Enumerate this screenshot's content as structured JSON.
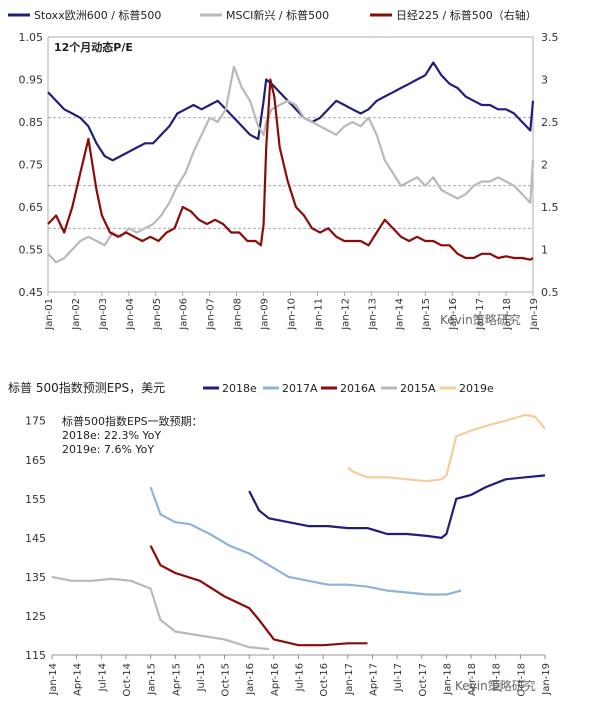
{
  "colors": {
    "navy": "#1f1f7a",
    "grey": "#b9b9b9",
    "darkred": "#8b0a0a",
    "lightblue": "#8db3d9",
    "tan": "#f2cf9a",
    "dashed": "#8c8c8c",
    "axis": "#555555"
  },
  "watermark_1": "Kevin策略研究",
  "watermark_2": "Kevin策略研究",
  "chart_data": [
    {
      "type": "line",
      "title": "12个月动态P/E",
      "legend_position": "top",
      "ylim": [
        0.45,
        1.05
      ],
      "y2lim": [
        0.5,
        3.5
      ],
      "y_ticks": [
        "1.05",
        "0.95",
        "0.85",
        "0.75",
        "0.65",
        "0.55",
        "0.45"
      ],
      "y2_ticks": [
        "3.5",
        "3",
        "2.5",
        "2",
        "1.5",
        "1",
        "0.5"
      ],
      "x_ticks": [
        "Jan-01",
        "Jan-02",
        "Jan-03",
        "Jan-04",
        "Jan-05",
        "Jan-06",
        "Jan-07",
        "Jan-08",
        "Jan-09",
        "Jan-10",
        "Jan-11",
        "Jan-12",
        "Jan-13",
        "Jan-14",
        "Jan-15",
        "Jan-16",
        "Jan-17",
        "Jan-18",
        "Jan-19"
      ],
      "xlim": [
        2001,
        2019
      ],
      "reference_lines": [
        {
          "axis": "left",
          "value": 0.86
        },
        {
          "axis": "left",
          "value": 0.7
        },
        {
          "axis": "left",
          "value": 0.6
        }
      ],
      "series": [
        {
          "name": "Stoxx欧洲600 / 标普500",
          "axis": "left",
          "color_key": "navy",
          "x": [
            2001.0,
            2001.3,
            2001.6,
            2001.9,
            2002.2,
            2002.5,
            2002.8,
            2003.1,
            2003.4,
            2003.7,
            2004.0,
            2004.3,
            2004.6,
            2004.9,
            2005.2,
            2005.5,
            2005.8,
            2006.1,
            2006.4,
            2006.7,
            2007.0,
            2007.3,
            2007.6,
            2007.9,
            2008.2,
            2008.5,
            2008.8,
            2009.0,
            2009.1,
            2009.3,
            2009.6,
            2009.9,
            2010.2,
            2010.5,
            2010.8,
            2011.1,
            2011.4,
            2011.7,
            2012.0,
            2012.3,
            2012.6,
            2012.9,
            2013.2,
            2013.5,
            2013.8,
            2014.1,
            2014.4,
            2014.7,
            2015.0,
            2015.3,
            2015.6,
            2015.9,
            2016.2,
            2016.5,
            2016.8,
            2017.1,
            2017.4,
            2017.7,
            2018.0,
            2018.3,
            2018.6,
            2018.9,
            2019.0
          ],
          "y": [
            0.92,
            0.9,
            0.88,
            0.87,
            0.86,
            0.84,
            0.8,
            0.77,
            0.76,
            0.77,
            0.78,
            0.79,
            0.8,
            0.8,
            0.82,
            0.84,
            0.87,
            0.88,
            0.89,
            0.88,
            0.89,
            0.9,
            0.88,
            0.86,
            0.84,
            0.82,
            0.81,
            0.9,
            0.95,
            0.94,
            0.92,
            0.9,
            0.88,
            0.86,
            0.85,
            0.86,
            0.88,
            0.9,
            0.89,
            0.88,
            0.87,
            0.88,
            0.9,
            0.91,
            0.92,
            0.93,
            0.94,
            0.95,
            0.96,
            0.99,
            0.96,
            0.94,
            0.93,
            0.91,
            0.9,
            0.89,
            0.89,
            0.88,
            0.88,
            0.87,
            0.85,
            0.83,
            0.9
          ]
        },
        {
          "name": "MSCI新兴 / 标普500",
          "axis": "left",
          "color_key": "grey",
          "x": [
            2001.0,
            2001.3,
            2001.6,
            2001.9,
            2002.2,
            2002.5,
            2002.8,
            2003.1,
            2003.4,
            2003.7,
            2004.0,
            2004.3,
            2004.6,
            2004.9,
            2005.2,
            2005.5,
            2005.8,
            2006.1,
            2006.4,
            2006.7,
            2007.0,
            2007.3,
            2007.6,
            2007.9,
            2008.2,
            2008.5,
            2008.8,
            2009.0,
            2009.1,
            2009.3,
            2009.6,
            2009.9,
            2010.2,
            2010.5,
            2010.8,
            2011.1,
            2011.4,
            2011.7,
            2012.0,
            2012.3,
            2012.6,
            2012.9,
            2013.2,
            2013.5,
            2013.8,
            2014.1,
            2014.4,
            2014.7,
            2015.0,
            2015.3,
            2015.6,
            2015.9,
            2016.2,
            2016.5,
            2016.8,
            2017.1,
            2017.4,
            2017.7,
            2018.0,
            2018.3,
            2018.6,
            2018.9,
            2019.0
          ],
          "y": [
            0.54,
            0.52,
            0.53,
            0.55,
            0.57,
            0.58,
            0.57,
            0.56,
            0.59,
            0.58,
            0.6,
            0.59,
            0.6,
            0.61,
            0.63,
            0.66,
            0.7,
            0.73,
            0.78,
            0.82,
            0.86,
            0.85,
            0.88,
            0.98,
            0.93,
            0.9,
            0.84,
            0.82,
            0.85,
            0.88,
            0.89,
            0.9,
            0.89,
            0.86,
            0.85,
            0.84,
            0.83,
            0.82,
            0.84,
            0.85,
            0.84,
            0.86,
            0.82,
            0.76,
            0.73,
            0.7,
            0.71,
            0.72,
            0.7,
            0.72,
            0.69,
            0.68,
            0.67,
            0.68,
            0.7,
            0.71,
            0.71,
            0.72,
            0.71,
            0.7,
            0.68,
            0.66,
            0.76
          ]
        },
        {
          "name": "日经225 / 标普500（右轴）",
          "axis": "right",
          "color_key": "darkred",
          "x": [
            2001.0,
            2001.3,
            2001.6,
            2001.9,
            2002.2,
            2002.5,
            2002.8,
            2003.0,
            2003.3,
            2003.6,
            2003.9,
            2004.2,
            2004.5,
            2004.8,
            2005.1,
            2005.4,
            2005.7,
            2006.0,
            2006.3,
            2006.6,
            2006.9,
            2007.2,
            2007.5,
            2007.8,
            2008.1,
            2008.4,
            2008.7,
            2008.9,
            2009.0,
            2009.1,
            2009.25,
            2009.4,
            2009.6,
            2009.9,
            2010.2,
            2010.5,
            2010.8,
            2011.1,
            2011.4,
            2011.7,
            2012.0,
            2012.3,
            2012.6,
            2012.9,
            2013.2,
            2013.5,
            2013.8,
            2014.1,
            2014.4,
            2014.7,
            2015.0,
            2015.3,
            2015.6,
            2015.9,
            2016.2,
            2016.5,
            2016.8,
            2017.1,
            2017.4,
            2017.7,
            2018.0,
            2018.3,
            2018.6,
            2018.9,
            2019.0
          ],
          "y": [
            1.3,
            1.4,
            1.2,
            1.5,
            1.9,
            2.3,
            1.7,
            1.4,
            1.2,
            1.15,
            1.2,
            1.15,
            1.1,
            1.15,
            1.1,
            1.2,
            1.25,
            1.5,
            1.45,
            1.35,
            1.3,
            1.35,
            1.3,
            1.2,
            1.2,
            1.1,
            1.1,
            1.05,
            1.3,
            2.2,
            3.0,
            2.8,
            2.2,
            1.8,
            1.5,
            1.4,
            1.25,
            1.2,
            1.25,
            1.15,
            1.1,
            1.1,
            1.1,
            1.05,
            1.2,
            1.35,
            1.25,
            1.15,
            1.1,
            1.15,
            1.1,
            1.1,
            1.05,
            1.05,
            0.95,
            0.9,
            0.9,
            0.95,
            0.95,
            0.9,
            0.92,
            0.9,
            0.9,
            0.88,
            0.9
          ]
        }
      ]
    },
    {
      "type": "line",
      "title": "标普 500指数预测EPS，美元",
      "annotation": [
        "标普500指数EPS一致预期：",
        "2018e: 22.3% YoY",
        "2019e: 7.6% YoY"
      ],
      "legend_position": "top",
      "ylim": [
        115,
        178
      ],
      "y_ticks": [
        "175",
        "165",
        "155",
        "145",
        "135",
        "125",
        "115"
      ],
      "x_ticks": [
        "Jan-14",
        "Apr-14",
        "Jul-14",
        "Oct-14",
        "Jan-15",
        "Apr-15",
        "Jul-15",
        "Oct-15",
        "Jan-16",
        "Apr-16",
        "Jul-16",
        "Oct-16",
        "Jan-17",
        "Apr-17",
        "Jul-17",
        "Oct-17",
        "Jan-18",
        "Apr-18",
        "Jul-18",
        "Oct-18",
        "Jan-19"
      ],
      "xlim": [
        2014.0,
        2019.0
      ],
      "series": [
        {
          "name": "2018e",
          "color_key": "navy",
          "x": [
            2016.0,
            2016.1,
            2016.2,
            2016.4,
            2016.6,
            2016.8,
            2017.0,
            2017.2,
            2017.4,
            2017.6,
            2017.8,
            2017.95,
            2018.0,
            2018.1,
            2018.25,
            2018.4,
            2018.6,
            2018.8,
            2019.0
          ],
          "y": [
            157,
            152,
            150,
            149,
            148,
            148,
            147.5,
            147.5,
            146,
            146,
            145.5,
            145,
            146,
            155,
            156,
            158,
            160,
            160.5,
            161
          ]
        },
        {
          "name": "2017A",
          "color_key": "lightblue",
          "x": [
            2015.0,
            2015.1,
            2015.25,
            2015.4,
            2015.6,
            2015.8,
            2016.0,
            2016.2,
            2016.4,
            2016.6,
            2016.8,
            2017.0,
            2017.2,
            2017.4,
            2017.6,
            2017.8,
            2018.0,
            2018.15
          ],
          "y": [
            158,
            151,
            149,
            148.5,
            146,
            143,
            141,
            138,
            135,
            134,
            133,
            133,
            132.5,
            131.5,
            131,
            130.5,
            130.5,
            131.5
          ]
        },
        {
          "name": "2016A",
          "color_key": "darkred",
          "x": [
            2015.0,
            2015.1,
            2015.25,
            2015.5,
            2015.75,
            2016.0,
            2016.1,
            2016.25,
            2016.5,
            2016.75,
            2017.0,
            2017.2
          ],
          "y": [
            143,
            138,
            136,
            134,
            130,
            127,
            124,
            119,
            117.5,
            117.5,
            118,
            118
          ]
        },
        {
          "name": "2015A",
          "color_key": "grey",
          "x": [
            2014.0,
            2014.2,
            2014.4,
            2014.6,
            2014.8,
            2015.0,
            2015.1,
            2015.25,
            2015.5,
            2015.75,
            2016.0,
            2016.2
          ],
          "y": [
            135,
            134,
            134,
            134.5,
            134,
            132,
            124,
            121,
            120,
            119,
            117,
            116.5
          ]
        },
        {
          "name": "2019e",
          "color_key": "tan",
          "x": [
            2017.0,
            2017.05,
            2017.2,
            2017.4,
            2017.6,
            2017.8,
            2017.95,
            2018.0,
            2018.1,
            2018.25,
            2018.45,
            2018.6,
            2018.8,
            2018.9,
            2019.0
          ],
          "y": [
            163,
            162,
            160.5,
            160.5,
            160,
            159.5,
            160,
            161,
            171,
            172.5,
            174,
            175,
            176.5,
            176,
            173
          ]
        }
      ]
    }
  ]
}
